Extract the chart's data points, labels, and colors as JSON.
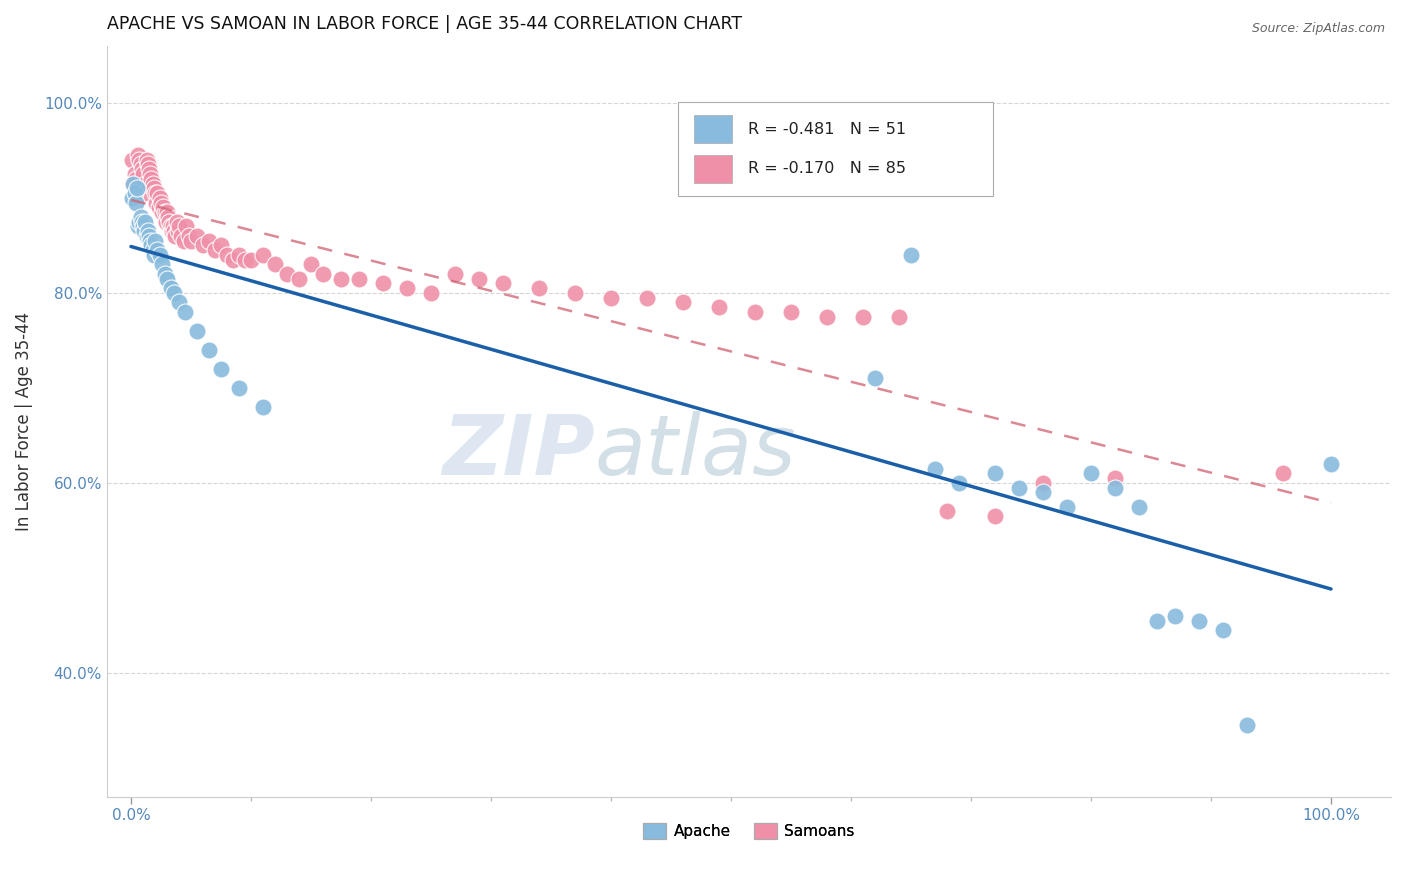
{
  "title": "APACHE VS SAMOAN IN LABOR FORCE | AGE 35-44 CORRELATION CHART",
  "source": "Source: ZipAtlas.com",
  "ylabel": "In Labor Force | Age 35-44",
  "xlim": [
    -0.02,
    1.05
  ],
  "ylim": [
    0.27,
    1.06
  ],
  "legend_apache_r": "-0.481",
  "legend_apache_n": "51",
  "legend_samoan_r": "-0.170",
  "legend_samoan_n": "85",
  "apache_color": "#88bbdd",
  "samoan_color": "#f090a8",
  "apache_line_color": "#1a5fa8",
  "samoan_line_color": "#d06070",
  "apache_x": [
    0.001,
    0.002,
    0.003,
    0.004,
    0.005,
    0.006,
    0.007,
    0.008,
    0.009,
    0.01,
    0.011,
    0.012,
    0.013,
    0.014,
    0.015,
    0.016,
    0.017,
    0.018,
    0.019,
    0.02,
    0.022,
    0.024,
    0.026,
    0.028,
    0.03,
    0.033,
    0.036,
    0.04,
    0.045,
    0.055,
    0.065,
    0.075,
    0.09,
    0.11,
    0.62,
    0.65,
    0.67,
    0.69,
    0.72,
    0.74,
    0.76,
    0.78,
    0.8,
    0.82,
    0.84,
    0.855,
    0.87,
    0.89,
    0.91,
    0.93,
    1.0
  ],
  "apache_y": [
    0.9,
    0.915,
    0.905,
    0.895,
    0.91,
    0.87,
    0.875,
    0.88,
    0.875,
    0.87,
    0.865,
    0.875,
    0.86,
    0.865,
    0.86,
    0.855,
    0.85,
    0.845,
    0.84,
    0.855,
    0.845,
    0.84,
    0.83,
    0.82,
    0.815,
    0.805,
    0.8,
    0.79,
    0.78,
    0.76,
    0.74,
    0.72,
    0.7,
    0.68,
    0.71,
    0.84,
    0.615,
    0.6,
    0.61,
    0.595,
    0.59,
    0.575,
    0.61,
    0.595,
    0.575,
    0.455,
    0.46,
    0.455,
    0.445,
    0.345,
    0.62
  ],
  "samoan_x": [
    0.001,
    0.002,
    0.003,
    0.004,
    0.005,
    0.006,
    0.007,
    0.008,
    0.009,
    0.01,
    0.011,
    0.012,
    0.013,
    0.014,
    0.015,
    0.016,
    0.017,
    0.018,
    0.019,
    0.02,
    0.021,
    0.022,
    0.023,
    0.024,
    0.025,
    0.026,
    0.027,
    0.028,
    0.029,
    0.03,
    0.031,
    0.032,
    0.033,
    0.034,
    0.035,
    0.036,
    0.037,
    0.038,
    0.039,
    0.04,
    0.042,
    0.044,
    0.046,
    0.048,
    0.05,
    0.055,
    0.06,
    0.065,
    0.07,
    0.075,
    0.08,
    0.085,
    0.09,
    0.095,
    0.1,
    0.11,
    0.12,
    0.13,
    0.14,
    0.15,
    0.16,
    0.175,
    0.19,
    0.21,
    0.23,
    0.25,
    0.27,
    0.29,
    0.31,
    0.34,
    0.37,
    0.4,
    0.43,
    0.46,
    0.49,
    0.52,
    0.55,
    0.58,
    0.61,
    0.64,
    0.68,
    0.72,
    0.76,
    0.82,
    0.96
  ],
  "samoan_y": [
    0.94,
    0.915,
    0.925,
    0.92,
    0.91,
    0.945,
    0.94,
    0.935,
    0.93,
    0.925,
    0.905,
    0.915,
    0.94,
    0.935,
    0.93,
    0.925,
    0.92,
    0.915,
    0.91,
    0.905,
    0.895,
    0.905,
    0.89,
    0.9,
    0.895,
    0.885,
    0.89,
    0.885,
    0.875,
    0.885,
    0.88,
    0.875,
    0.87,
    0.865,
    0.87,
    0.865,
    0.86,
    0.875,
    0.865,
    0.87,
    0.86,
    0.855,
    0.87,
    0.86,
    0.855,
    0.86,
    0.85,
    0.855,
    0.845,
    0.85,
    0.84,
    0.835,
    0.84,
    0.835,
    0.835,
    0.84,
    0.83,
    0.82,
    0.815,
    0.83,
    0.82,
    0.815,
    0.815,
    0.81,
    0.805,
    0.8,
    0.82,
    0.815,
    0.81,
    0.805,
    0.8,
    0.795,
    0.795,
    0.79,
    0.785,
    0.78,
    0.78,
    0.775,
    0.775,
    0.775,
    0.57,
    0.565,
    0.6,
    0.605,
    0.61
  ]
}
